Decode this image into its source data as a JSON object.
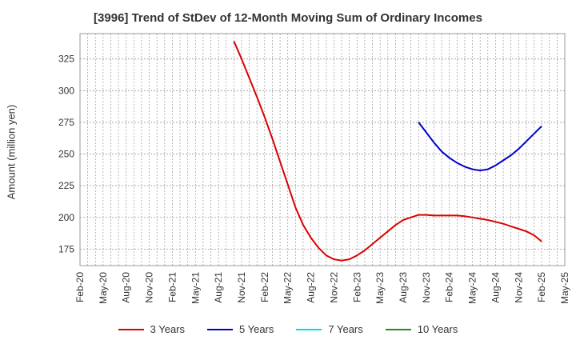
{
  "title": "[3996]  Trend of StDev of 12-Month Moving Sum of Ordinary Incomes",
  "chart_data": {
    "type": "line",
    "title": "[3996]  Trend of StDev of 12-Month Moving Sum of Ordinary Incomes",
    "xlabel": "",
    "ylabel": "Amount (million yen)",
    "ylim": [
      162,
      345
    ],
    "xlim": [
      "2020-02",
      "2025-05"
    ],
    "y_ticks": [
      175,
      200,
      225,
      250,
      275,
      300,
      325
    ],
    "x_ticks": [
      "Feb-20",
      "May-20",
      "Aug-20",
      "Nov-20",
      "Feb-21",
      "May-21",
      "Aug-21",
      "Nov-21",
      "Feb-22",
      "May-22",
      "Aug-22",
      "Nov-22",
      "Feb-23",
      "May-23",
      "Aug-23",
      "Nov-23",
      "Feb-24",
      "May-24",
      "Aug-24",
      "Nov-24",
      "Feb-25",
      "May-25"
    ],
    "grid": true,
    "legend_position": "bottom",
    "series": [
      {
        "name": "3 Years",
        "color": "#dd0000",
        "x": [
          "2021-10",
          "2021-11",
          "2021-12",
          "2022-01",
          "2022-02",
          "2022-03",
          "2022-04",
          "2022-05",
          "2022-06",
          "2022-07",
          "2022-08",
          "2022-09",
          "2022-10",
          "2022-11",
          "2022-12",
          "2023-01",
          "2023-02",
          "2023-03",
          "2023-04",
          "2023-05",
          "2023-06",
          "2023-07",
          "2023-08",
          "2023-09",
          "2023-10",
          "2023-11",
          "2023-12",
          "2024-01",
          "2024-02",
          "2024-03",
          "2024-04",
          "2024-05",
          "2024-06",
          "2024-07",
          "2024-08",
          "2024-09",
          "2024-10",
          "2024-11",
          "2024-12",
          "2025-01",
          "2025-02"
        ],
        "values": [
          339,
          325,
          310,
          295,
          279,
          262,
          244,
          226,
          208,
          194,
          184,
          176,
          170,
          167,
          166,
          167,
          170,
          174,
          179,
          184,
          189,
          194,
          198,
          200,
          202,
          202,
          201.5,
          201.5,
          201.5,
          201.5,
          201,
          200,
          199,
          198,
          196.5,
          195,
          193,
          191,
          189,
          186,
          181
        ]
      },
      {
        "name": "5 Years",
        "color": "#0000cc",
        "x": [
          "2023-10",
          "2023-11",
          "2023-12",
          "2024-01",
          "2024-02",
          "2024-03",
          "2024-04",
          "2024-05",
          "2024-06",
          "2024-07",
          "2024-08",
          "2024-09",
          "2024-10",
          "2024-11",
          "2024-12",
          "2025-01",
          "2025-02"
        ],
        "values": [
          275,
          267,
          259,
          252,
          247,
          243,
          240,
          238,
          237,
          238,
          241,
          245,
          249,
          254,
          260,
          266,
          272
        ]
      },
      {
        "name": "7 Years",
        "color": "#00dddd",
        "x": [],
        "values": []
      },
      {
        "name": "10 Years",
        "color": "#228b22",
        "x": [],
        "values": []
      }
    ]
  }
}
